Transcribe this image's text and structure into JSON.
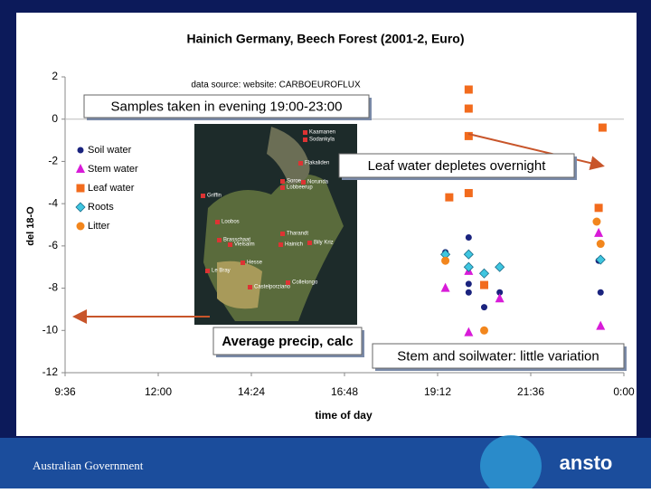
{
  "chart_data": {
    "type": "scatter",
    "title": "Hainich Germany, Beech Forest (2001-2, Euro)",
    "x_label": "time of day",
    "y_label": "del 18-O",
    "source": "data source: website: CARBOEUROFLUX",
    "xlim": [
      9.6,
      24
    ],
    "xticks": [
      {
        "value": 9.6,
        "label": "9:36"
      },
      {
        "value": 12,
        "label": "12:00"
      },
      {
        "value": 14.4,
        "label": "14:24"
      },
      {
        "value": 16.8,
        "label": "16:48"
      },
      {
        "value": 19.2,
        "label": "19:12"
      },
      {
        "value": 21.6,
        "label": "21:36"
      },
      {
        "value": 24,
        "label": "0:00"
      }
    ],
    "ylim": [
      -12,
      2
    ],
    "yticks": [
      -12,
      -10,
      -8,
      -6,
      -4,
      -2,
      0,
      2
    ],
    "series": [
      {
        "name": "Soil water",
        "color": "#1a237e",
        "marker": "circle",
        "x": [
          19.4,
          20.0,
          20.0,
          20.0,
          20.8,
          20.4,
          23.35,
          23.4
        ],
        "values": [
          -6.3,
          -5.6,
          -7.8,
          -8.2,
          -8.2,
          -8.9,
          -6.7,
          -8.2
        ]
      },
      {
        "name": "Stem water",
        "color": "#d81bd8",
        "marker": "triangle",
        "x": [
          19.4,
          20.0,
          20.8,
          20.0,
          23.35,
          23.4
        ],
        "values": [
          -8.0,
          -7.2,
          -8.5,
          -10.1,
          -5.4,
          -9.8
        ]
      },
      {
        "name": "Leaf water",
        "color": "#f26b1d",
        "marker": "square",
        "x": [
          20.0,
          20.0,
          20.0,
          19.5,
          20.0,
          20.4,
          23.45,
          23.35
        ],
        "values": [
          1.4,
          0.5,
          -0.8,
          -3.7,
          -3.5,
          -7.85,
          -0.4,
          -4.2
        ]
      },
      {
        "name": "Roots",
        "color": "#3fc6e0",
        "marker": "diamond",
        "x": [
          19.4,
          20.0,
          20.0,
          20.4,
          20.8,
          23.4
        ],
        "values": [
          -6.4,
          -6.4,
          -7.0,
          -7.3,
          -7.0,
          -6.65
        ]
      },
      {
        "name": "Litter",
        "color": "#f2861d",
        "marker": "circle",
        "x": [
          19.4,
          23.3,
          23.4,
          20.4
        ],
        "values": [
          -6.7,
          -4.85,
          -5.9,
          -10.0
        ]
      }
    ],
    "annotations": [
      "Samples taken in evening 19:00-23:00",
      "Leaf water depletes overnight",
      "Average precip, calc",
      "Stem and soilwater: little variation"
    ],
    "map_labels": [
      "Kaamanen",
      "Sodankyla",
      "Flakaliden",
      "Norunda",
      "Soroe",
      "Lobbeerup",
      "Griffin",
      "Loobos",
      "Brasschaat",
      "Vielsalm",
      "Hainich",
      "Tharandt",
      "Bily Kriz",
      "Le Bray",
      "Hesse",
      "Castelporziano",
      "Collelongo"
    ]
  },
  "footer": {
    "government": "Australian Government",
    "logo": "ansto"
  }
}
